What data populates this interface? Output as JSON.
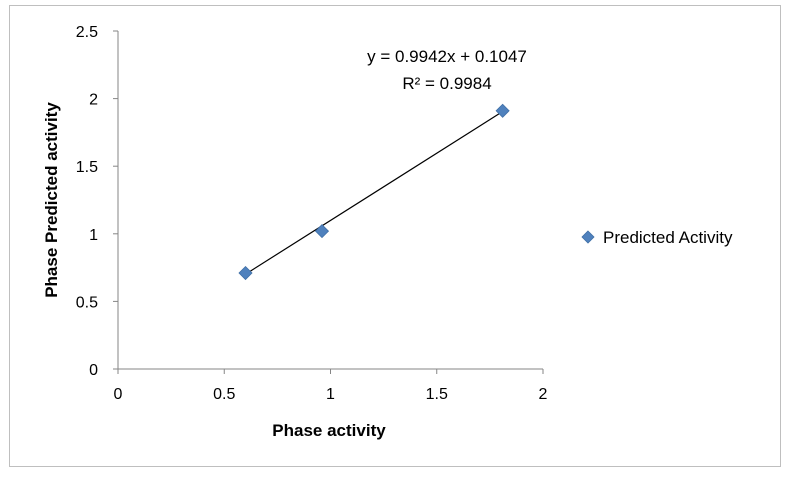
{
  "chart_data": {
    "type": "scatter",
    "xlabel": "Phase activity",
    "ylabel": "Phase Predicted activity",
    "xlim": [
      0,
      2
    ],
    "ylim": [
      0,
      2.5
    ],
    "x_ticks": [
      "0",
      "0.5",
      "1",
      "1.5",
      "2"
    ],
    "y_ticks": [
      "0",
      "0.5",
      "1",
      "1.5",
      "2",
      "2.5"
    ],
    "series": [
      {
        "name": "Predicted Activity",
        "x": [
          0.6,
          0.96,
          1.81
        ],
        "y": [
          0.71,
          1.02,
          1.91
        ],
        "color": "#4f81bd",
        "marker": "diamond"
      }
    ],
    "trendline": {
      "type": "linear",
      "slope": 0.9942,
      "intercept": 0.1047,
      "x_range": [
        0.6,
        1.81
      ],
      "color": "#000000",
      "equation": "y = 0.9942x + 0.1047",
      "r_squared": "R² = 0.9984"
    },
    "grid": false,
    "legend": "right"
  }
}
